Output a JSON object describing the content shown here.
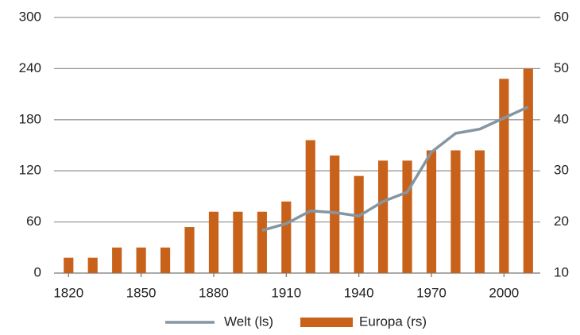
{
  "chart_data": {
    "type": "combo",
    "x": [
      1820,
      1830,
      1840,
      1850,
      1860,
      1870,
      1880,
      1890,
      1900,
      1910,
      1920,
      1930,
      1940,
      1950,
      1960,
      1970,
      1980,
      1990,
      2000,
      2010
    ],
    "xlim": [
      1814,
      2015
    ],
    "xticks": [
      1820,
      1850,
      1880,
      1910,
      1940,
      1970,
      2000
    ],
    "ylim": [
      0,
      300
    ],
    "yticks": [
      0,
      60,
      120,
      180,
      240,
      300
    ],
    "y2lim": [
      10,
      60
    ],
    "y2ticks": [
      10,
      20,
      30,
      40,
      50,
      60
    ],
    "grid": true,
    "legend": "bottom",
    "series": [
      {
        "name": "Welt (ls)",
        "type": "line",
        "axis": "y",
        "color": "#8596a3",
        "values": [
          null,
          null,
          null,
          null,
          null,
          null,
          null,
          null,
          50,
          58,
          73,
          71,
          67,
          84,
          95,
          142,
          164,
          169,
          182,
          195
        ]
      },
      {
        "name": "Europa (rs)",
        "type": "bar",
        "axis": "y2",
        "color": "#c8621a",
        "values": [
          13,
          13,
          15,
          15,
          15,
          19,
          22,
          22,
          22,
          24,
          36,
          33,
          29,
          32,
          32,
          34,
          34,
          34,
          48,
          50
        ]
      }
    ]
  }
}
